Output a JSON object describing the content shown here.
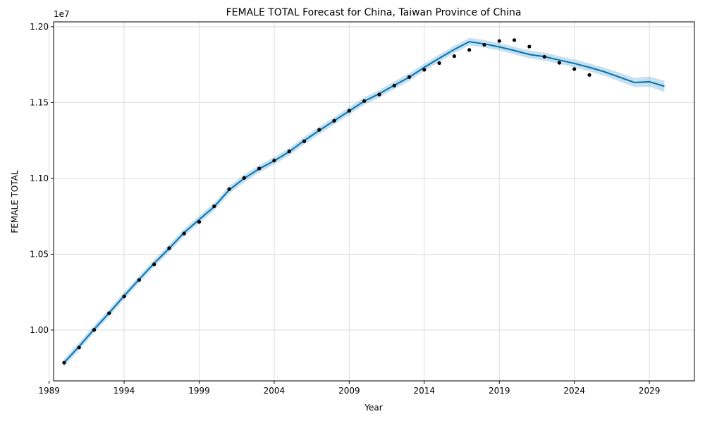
{
  "chart_data": {
    "type": "line",
    "title": "FEMALE TOTAL Forecast for China, Taiwan Province of China",
    "xlabel": "Year",
    "ylabel": "FEMALE TOTAL",
    "y_offset_text": "1e7",
    "xlim": [
      1989.3,
      2032.0
    ],
    "ylim": [
      0.9665,
      1.2032
    ],
    "grid": true,
    "x_ticks": [
      1989,
      1994,
      1999,
      2004,
      2009,
      2014,
      2019,
      2024,
      2029
    ],
    "x_tick_labels": [
      "1989",
      "1994",
      "1999",
      "2004",
      "2009",
      "2014",
      "2019",
      "2024",
      "2029"
    ],
    "y_ticks": [
      1.0,
      1.05,
      1.1,
      1.15,
      1.2
    ],
    "y_tick_labels": [
      "1.00",
      "1.05",
      "1.10",
      "1.15",
      "1.20"
    ],
    "colors": {
      "forecast_line": "#0072B2",
      "interval_fill": "#0072B2",
      "actual_points": "#000000",
      "grid": "#dddddd"
    },
    "series": [
      {
        "role": "actual",
        "kind": "scatter",
        "x": [
          1990,
          1991,
          1992,
          1993,
          1994,
          1995,
          1996,
          1997,
          1998,
          1999,
          2000,
          2001,
          2002,
          2003,
          2004,
          2005,
          2006,
          2007,
          2008,
          2009,
          2010,
          2011,
          2012,
          2013,
          2014,
          2015,
          2016,
          2017,
          2018,
          2019,
          2020,
          2021,
          2022,
          2023,
          2024,
          2025
        ],
        "y": [
          0.9785,
          0.9885,
          1.0001,
          1.0111,
          1.0222,
          1.033,
          1.0433,
          1.054,
          1.0637,
          1.0713,
          1.0816,
          1.0929,
          1.1003,
          1.1065,
          1.1118,
          1.1178,
          1.1245,
          1.132,
          1.138,
          1.1446,
          1.151,
          1.1553,
          1.1612,
          1.1668,
          1.1716,
          1.176,
          1.1806,
          1.1847,
          1.1881,
          1.1906,
          1.1912,
          1.1869,
          1.1802,
          1.1762,
          1.1721,
          1.1682
        ]
      },
      {
        "role": "forecast",
        "kind": "line",
        "x": [
          1990,
          1991,
          1992,
          1993,
          1994,
          1995,
          1996,
          1997,
          1998,
          1999,
          2000,
          2001,
          2002,
          2003,
          2004,
          2005,
          2006,
          2007,
          2008,
          2009,
          2010,
          2011,
          2012,
          2013,
          2014,
          2015,
          2016,
          2017,
          2018,
          2019,
          2020,
          2021,
          2022,
          2023,
          2024,
          2025,
          2026,
          2027,
          2028,
          2029,
          2030
        ],
        "y": [
          0.9785,
          0.9892,
          1.0005,
          1.0113,
          1.0225,
          1.0334,
          1.044,
          1.0538,
          1.0643,
          1.0728,
          1.0813,
          1.0924,
          1.1,
          1.1063,
          1.1116,
          1.1176,
          1.1249,
          1.1316,
          1.138,
          1.1445,
          1.1509,
          1.1558,
          1.1614,
          1.1667,
          1.1732,
          1.1792,
          1.185,
          1.1901,
          1.1887,
          1.1867,
          1.1843,
          1.1817,
          1.1803,
          1.178,
          1.1758,
          1.1732,
          1.1703,
          1.1668,
          1.1632,
          1.1637,
          1.1607
        ],
        "lower": [
          0.976,
          0.9866,
          0.9981,
          1.0089,
          1.0201,
          1.031,
          1.0416,
          1.0513,
          1.0618,
          1.0704,
          1.0788,
          1.0899,
          1.0974,
          1.1039,
          1.1091,
          1.1151,
          1.1224,
          1.1291,
          1.1355,
          1.142,
          1.1485,
          1.1533,
          1.1589,
          1.1642,
          1.1708,
          1.1767,
          1.1826,
          1.1876,
          1.1862,
          1.1843,
          1.1818,
          1.1792,
          1.1777,
          1.1755,
          1.1732,
          1.1706,
          1.1676,
          1.164,
          1.1602,
          1.1604,
          1.157
        ],
        "upper": [
          0.9811,
          0.9918,
          1.003,
          1.0138,
          1.025,
          1.0358,
          1.0464,
          1.0563,
          1.0668,
          1.0753,
          1.0838,
          1.0949,
          1.1025,
          1.1088,
          1.1141,
          1.1201,
          1.1274,
          1.1341,
          1.1405,
          1.147,
          1.1534,
          1.1583,
          1.164,
          1.1693,
          1.1757,
          1.1817,
          1.1875,
          1.1927,
          1.1913,
          1.1892,
          1.1868,
          1.1843,
          1.1829,
          1.1806,
          1.1784,
          1.1758,
          1.173,
          1.1697,
          1.1663,
          1.1671,
          1.1644
        ]
      }
    ]
  }
}
